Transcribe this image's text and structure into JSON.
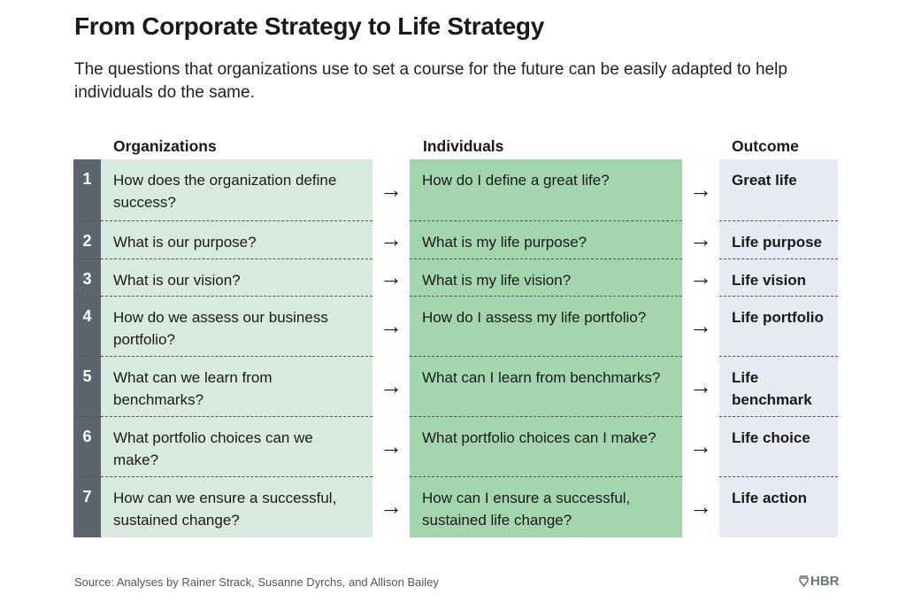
{
  "title": "From Corporate Strategy to Life Strategy",
  "subtitle": "The questions that organizations use to set a course for the future can be easily adapted to help individuals do the same.",
  "headers": {
    "organizations": "Organizations",
    "individuals": "Individuals",
    "outcome": "Outcome"
  },
  "rows": [
    {
      "num": "1",
      "org": "How does the organization define success?",
      "ind": "How do I define a great life?",
      "out": "Great life"
    },
    {
      "num": "2",
      "org": "What is our purpose?",
      "ind": "What is my life purpose?",
      "out": "Life purpose"
    },
    {
      "num": "3",
      "org": "What is our vision?",
      "ind": "What is my life vision?",
      "out": "Life vision"
    },
    {
      "num": "4",
      "org": "How do we assess our business portfolio?",
      "ind": "How do I assess my life portfolio?",
      "out": "Life portfolio"
    },
    {
      "num": "5",
      "org": "What can we learn from benchmarks?",
      "ind": "What can I learn from benchmarks?",
      "out": "Life benchmark"
    },
    {
      "num": "6",
      "org": "What portfolio choices can we make?",
      "ind": "What portfolio choices can I make?",
      "out": "Life choice"
    },
    {
      "num": "7",
      "org": "How can we ensure a successful, sustained change?",
      "ind": "How can I ensure a successful, sustained life change?",
      "out": "Life action"
    }
  ],
  "arrow": "→",
  "source": "Source: Analyses by Rainer Strack, Susanne Dyrchs, and Allison Bailey",
  "logo": "HBR",
  "colors": {
    "number_column": "#5b656b",
    "organizations": "#d8eadf",
    "individuals": "#a3d6ae",
    "outcome": "#e6eaf2"
  }
}
